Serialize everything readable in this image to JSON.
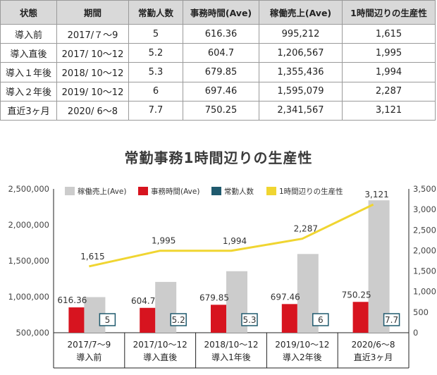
{
  "table": {
    "headers": [
      "状態",
      "期間",
      "常勤人数",
      "事務時間(Ave)",
      "稼働売上(Ave)",
      "1時間辺りの生産性"
    ],
    "rows": [
      [
        "導入前",
        "2017/７〜9",
        "5",
        "616.36",
        "995,212",
        "1,615"
      ],
      [
        "導入直後",
        "2017/ 10〜12",
        "5.2",
        "604.7",
        "1,206,567",
        "1,995"
      ],
      [
        "導入１年後",
        "2018/ 10〜12",
        "5.3",
        "679.85",
        "1,355,436",
        "1,994"
      ],
      [
        "導入２年後",
        "2019/ 10〜12",
        "6",
        "697.46",
        "1,595,079",
        "2,287"
      ],
      [
        "直近3ヶ月",
        "2020/ 6〜8",
        "7.7",
        "750.25",
        "2,341,567",
        "3,121"
      ]
    ]
  },
  "chart_data": {
    "type": "bar",
    "title": "常勤事務1時間辺りの生産性",
    "categories": [
      [
        "2017/7〜9",
        "導入前"
      ],
      [
        "2017/10〜12",
        "導入直後"
      ],
      [
        "2018/10〜12",
        "導入1年後"
      ],
      [
        "2019/10〜12",
        "導入2年後"
      ],
      [
        "2020/6〜8",
        "直近3ヶ月"
      ]
    ],
    "left_axis": {
      "ylim": [
        500000,
        2500000
      ],
      "ticks": [
        "500,000",
        "1,000,000",
        "1,500,000",
        "2,000,000",
        "2,500,000"
      ],
      "tick_values": [
        500000,
        1000000,
        1500000,
        2000000,
        2500000
      ]
    },
    "right_axis": {
      "ylim": [
        0,
        3500
      ],
      "ticks": [
        "0",
        "500",
        "1,000",
        "1,500",
        "2,000",
        "2,500",
        "3,000",
        "3,500"
      ],
      "tick_values": [
        0,
        500,
        1000,
        1500,
        2000,
        2500,
        3000,
        3500
      ]
    },
    "legend_position": "top",
    "series": [
      {
        "name": "稼働売上(Ave)",
        "kind": "bar",
        "axis": "left",
        "color": "#cccccc",
        "values": [
          995212,
          1206567,
          1355436,
          1595079,
          2341567
        ]
      },
      {
        "name": "事務時間(Ave)",
        "kind": "bar",
        "axis": "right",
        "color": "#d7141f",
        "values": [
          616.36,
          604.7,
          679.85,
          697.46,
          750.25
        ],
        "labels": [
          "616.36",
          "604.7",
          "679.85",
          "697.46",
          "750.25"
        ]
      },
      {
        "name": "常勤人数",
        "kind": "label",
        "color": "#1f5a6e",
        "values": [
          5,
          5.2,
          5.3,
          6,
          7.7
        ],
        "labels": [
          "5",
          "5.2",
          "5.3",
          "6",
          "7.7"
        ]
      },
      {
        "name": "1時間辺りの生産性",
        "kind": "line",
        "axis": "right",
        "color": "#f0d531",
        "values": [
          1615,
          1995,
          1994,
          2287,
          3121
        ],
        "labels": [
          "1,615",
          "1,995",
          "1,994",
          "2,287",
          "3,121"
        ]
      }
    ]
  }
}
